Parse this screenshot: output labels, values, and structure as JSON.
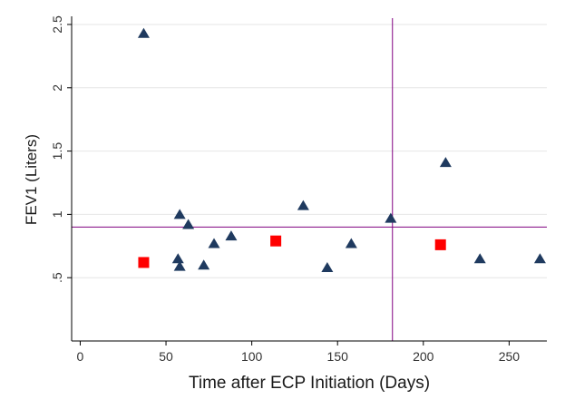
{
  "chart_data": {
    "type": "scatter",
    "title": "",
    "xlabel": "Time after ECP Initiation (Days)",
    "ylabel": "FEV1 (Liters)",
    "xlim": [
      -5,
      272
    ],
    "ylim": [
      0,
      2.55
    ],
    "xticks": [
      0,
      50,
      100,
      150,
      200,
      250
    ],
    "xtick_labels": [
      "0",
      "50",
      "100",
      "150",
      "200",
      "250"
    ],
    "yticks": [
      0.5,
      1,
      1.5,
      2,
      2.5
    ],
    "ytick_labels": [
      ".5",
      "1",
      "1.5",
      "2",
      "2.5"
    ],
    "grid": true,
    "legend": "none",
    "colors": {
      "triangle": "#1f3a5f",
      "square": "#ff0000",
      "reference_line": "#800080",
      "grid": "#e6e6e6",
      "axis": "#000000"
    },
    "reference_lines": {
      "x": 182,
      "y": 0.9
    },
    "series": [
      {
        "marker": "triangle",
        "points": [
          {
            "x": 37,
            "y": 2.43
          },
          {
            "x": 57,
            "y": 0.65
          },
          {
            "x": 58,
            "y": 0.59
          },
          {
            "x": 58,
            "y": 1.0
          },
          {
            "x": 63,
            "y": 0.92
          },
          {
            "x": 72,
            "y": 0.6
          },
          {
            "x": 78,
            "y": 0.77
          },
          {
            "x": 88,
            "y": 0.83
          },
          {
            "x": 130,
            "y": 1.07
          },
          {
            "x": 144,
            "y": 0.58
          },
          {
            "x": 158,
            "y": 0.77
          },
          {
            "x": 181,
            "y": 0.97
          },
          {
            "x": 213,
            "y": 1.41
          },
          {
            "x": 233,
            "y": 0.65
          },
          {
            "x": 268,
            "y": 0.65
          }
        ]
      },
      {
        "marker": "square",
        "points": [
          {
            "x": 37,
            "y": 0.62
          },
          {
            "x": 114,
            "y": 0.79
          },
          {
            "x": 210,
            "y": 0.76
          }
        ]
      }
    ]
  }
}
